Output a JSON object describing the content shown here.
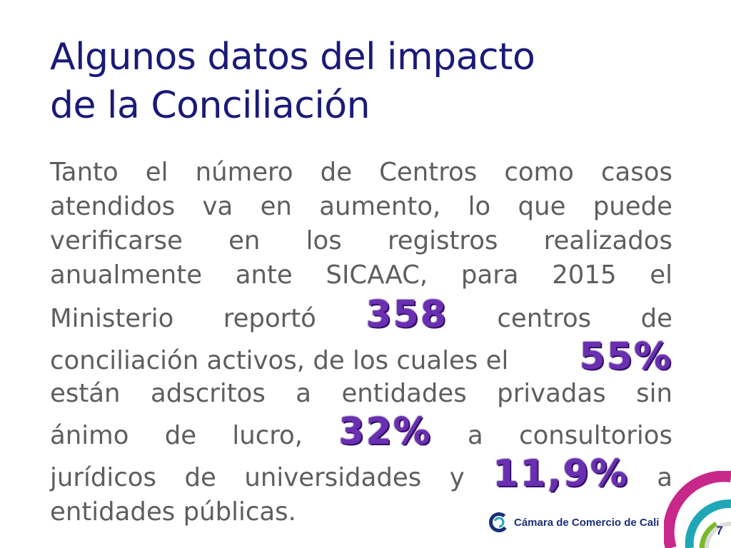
{
  "slide": {
    "title_line1": "Algunos datos del impacto",
    "title_line2": "de la Conciliación"
  },
  "body": {
    "line1": [
      "Tanto",
      "el",
      "número",
      "de",
      "Centros",
      "como",
      "casos"
    ],
    "line2": [
      "atendidos",
      "va",
      "en",
      "aumento,",
      "lo",
      "que",
      "puede"
    ],
    "line3": [
      "verificarse",
      "en",
      "los",
      "registros",
      "realizados"
    ],
    "line4": [
      "anualmente",
      "ante",
      "SICAAC,",
      "para",
      "2015",
      "el"
    ],
    "line5_a": [
      "Ministerio",
      "reportó"
    ],
    "line5_b": [
      "centros",
      "de"
    ],
    "line6": "conciliación activos, de los cuales el",
    "line7": [
      "están",
      "adscritos",
      "a",
      "entidades",
      "privadas",
      "sin"
    ],
    "line8_a": [
      "ánimo",
      "de",
      "lucro,"
    ],
    "line8_b": [
      "a",
      "consultorios"
    ],
    "line9_a": [
      "jurídicos",
      "de",
      "universidades",
      "y"
    ],
    "line9_b": [
      "a"
    ],
    "line10": "entidades públicas."
  },
  "stats": {
    "centros": "358",
    "privadas": "55%",
    "consultorios": "32%",
    "publicas": "11,9%"
  },
  "footer": {
    "logo_text": "Cámara de Comercio de Cali",
    "logo_icon": "camara-comercio-logo-icon",
    "page_number": "7"
  },
  "colors": {
    "title": "#1a1a78",
    "body_text": "#5e5e5e",
    "stat_purple": "#6a2fb2",
    "accent_magenta": "#c8288a",
    "accent_teal": "#1fa7b8",
    "accent_green": "#79b929",
    "logo_blue": "#1c2f7a"
  }
}
